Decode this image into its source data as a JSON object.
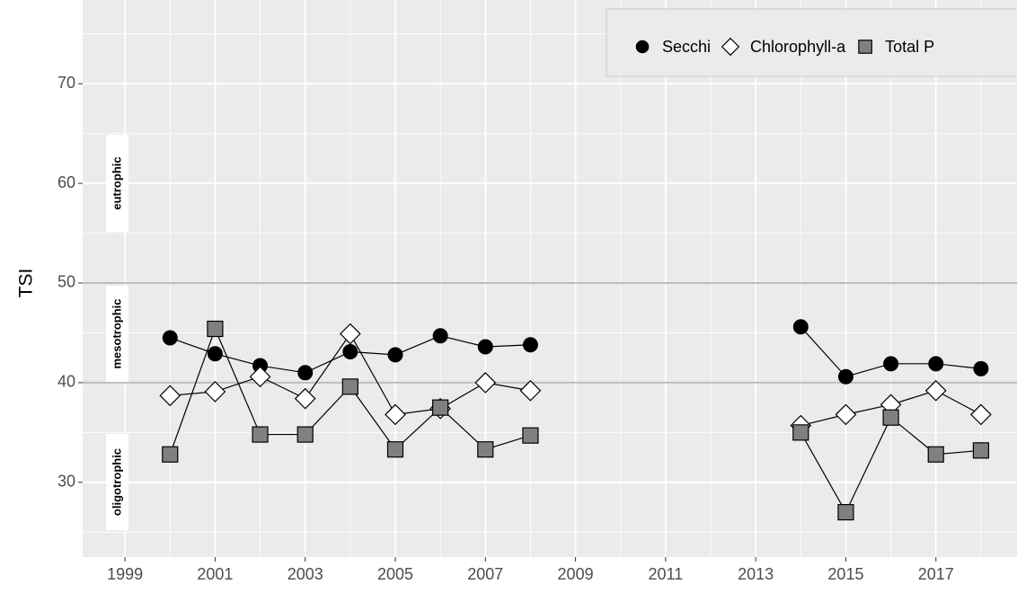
{
  "chart_data": {
    "type": "line",
    "y_label": "TSI",
    "x": [
      2000,
      2001,
      2002,
      2003,
      2004,
      2005,
      2006,
      2007,
      2008,
      2009,
      2010,
      2011,
      2012,
      2013,
      2014,
      2015,
      2016,
      2017,
      2018
    ],
    "series": [
      {
        "name": "Secchi",
        "color": "#000000",
        "marker": "circle",
        "values": [
          44.5,
          42.9,
          41.7,
          41.0,
          43.1,
          42.8,
          44.7,
          43.6,
          43.8,
          null,
          null,
          null,
          null,
          null,
          45.6,
          40.6,
          41.9,
          41.9,
          41.4
        ]
      },
      {
        "name": "Chlorophyll-a",
        "color": "#ffffff",
        "marker": "diamond",
        "values": [
          38.7,
          39.1,
          40.6,
          38.4,
          44.9,
          36.8,
          37.4,
          40.0,
          39.2,
          null,
          null,
          null,
          null,
          null,
          35.7,
          36.8,
          37.8,
          39.2,
          36.8
        ]
      },
      {
        "name": "Total P",
        "color": "#808080",
        "marker": "square",
        "values": [
          32.8,
          45.4,
          34.8,
          34.8,
          39.6,
          33.3,
          37.5,
          33.3,
          34.7,
          null,
          null,
          null,
          null,
          null,
          35.0,
          27.0,
          36.5,
          32.8,
          33.2
        ]
      }
    ],
    "thresholds": [
      40,
      50
    ],
    "zone_labels": [
      "eutrophic",
      "mesotrophic",
      "oligotrophic"
    ],
    "xlim": [
      1998.06,
      2018.8
    ],
    "xticks": [
      1999,
      2001,
      2003,
      2005,
      2007,
      2009,
      2011,
      2013,
      2015,
      2017
    ],
    "ylim": [
      22.5,
      78.4
    ],
    "yticks": [
      30,
      40,
      50,
      60,
      70
    ],
    "grid": true,
    "legend_position": "top-right"
  }
}
